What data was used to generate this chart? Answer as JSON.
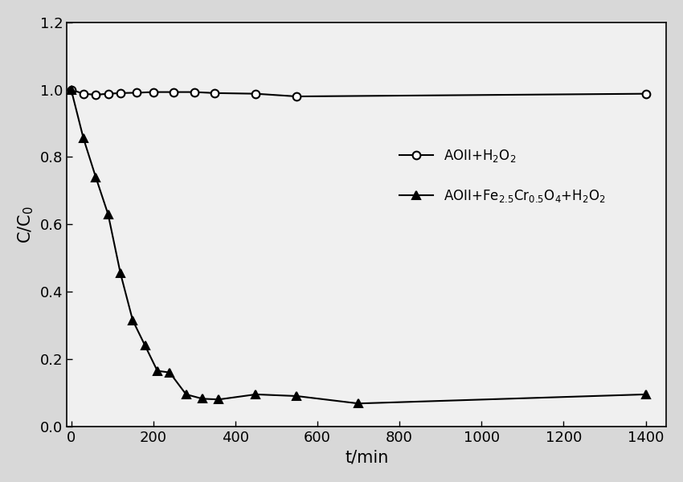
{
  "series1_x": [
    0,
    30,
    60,
    90,
    120,
    160,
    200,
    250,
    300,
    350,
    450,
    550,
    1400
  ],
  "series1_y": [
    1.0,
    0.988,
    0.985,
    0.988,
    0.99,
    0.991,
    0.993,
    0.993,
    0.993,
    0.99,
    0.988,
    0.98,
    0.988
  ],
  "series2_x": [
    0,
    30,
    60,
    90,
    120,
    150,
    180,
    210,
    240,
    280,
    320,
    360,
    450,
    550,
    700,
    1400
  ],
  "series2_y": [
    1.0,
    0.855,
    0.74,
    0.63,
    0.455,
    0.315,
    0.24,
    0.165,
    0.16,
    0.095,
    0.082,
    0.08,
    0.095,
    0.09,
    0.068,
    0.095
  ],
  "xlabel": "t/min",
  "ylabel": "C/C$_0$",
  "xlim": [
    -10,
    1450
  ],
  "ylim": [
    0.0,
    1.2
  ],
  "xticks": [
    0,
    200,
    400,
    600,
    800,
    1000,
    1200,
    1400
  ],
  "yticks": [
    0.0,
    0.2,
    0.4,
    0.6,
    0.8,
    1.0,
    1.2
  ],
  "legend1": "AOII+H$_2$O$_2$",
  "legend2": "AOII+Fe$_{2.5}$Cr$_{0.5}$O$_4$+H$_2$O$_2$",
  "line_color": "#000000",
  "bg_color": "#f0f0f0",
  "fontsize_label": 15,
  "fontsize_tick": 13,
  "fontsize_legend": 12
}
